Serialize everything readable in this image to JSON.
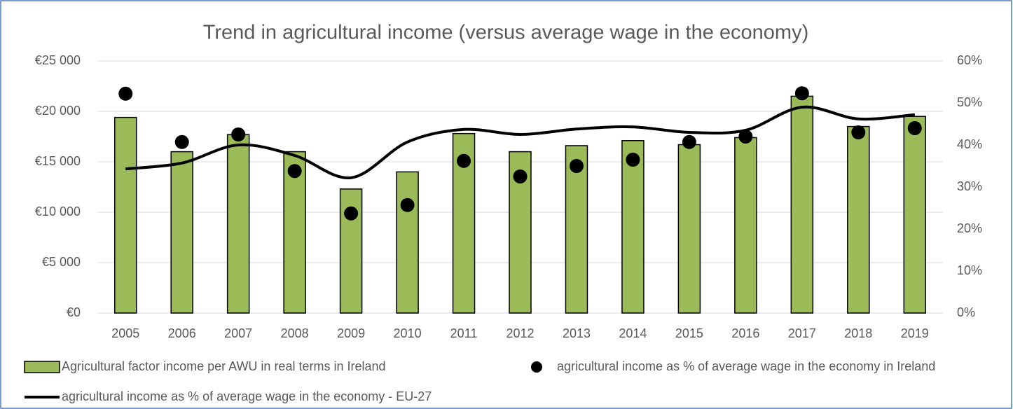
{
  "chart_data": {
    "type": "bar",
    "title": "Trend in agricultural income (versus average wage in the economy)",
    "categories": [
      "2005",
      "2006",
      "2007",
      "2008",
      "2009",
      "2010",
      "2011",
      "2012",
      "2013",
      "2014",
      "2015",
      "2016",
      "2017",
      "2018",
      "2019"
    ],
    "series": [
      {
        "name": "Agricultural factor income per AWU in real terms in Ireland",
        "type": "bar",
        "color": "#9bbb59",
        "values": [
          19400,
          16000,
          17700,
          16000,
          12300,
          14000,
          17800,
          16000,
          16600,
          17100,
          16700,
          17400,
          21500,
          18500,
          19500
        ]
      },
      {
        "name": "agricultural income as % of average wage in the economy in Ireland",
        "type": "scatter",
        "color": "#000000",
        "axis": "y2",
        "values": [
          52.2,
          40.7,
          42.5,
          33.8,
          23.7,
          25.7,
          36.2,
          32.5,
          35,
          36.5,
          40.7,
          42,
          52.3,
          43,
          44
        ]
      },
      {
        "name": "agricultural income as % of average wage in the economy - EU-27",
        "type": "line",
        "color": "#000000",
        "axis": "y2",
        "values": [
          34.3,
          35.7,
          40,
          37.5,
          32.2,
          40.7,
          43.7,
          42.5,
          43.8,
          44.3,
          43,
          43.5,
          49,
          46.2,
          47.2
        ]
      }
    ],
    "ylim": [
      0,
      25000
    ],
    "yticks": [
      {
        "value": 0,
        "label": "€0"
      },
      {
        "value": 5000,
        "label": "€5 000"
      },
      {
        "value": 10000,
        "label": "€10 000"
      },
      {
        "value": 15000,
        "label": "€15 000"
      },
      {
        "value": 20000,
        "label": "€20 000"
      },
      {
        "value": 25000,
        "label": "€25 000"
      }
    ],
    "y2lim": [
      0,
      60
    ],
    "y2ticks": [
      {
        "value": 0,
        "label": "0%"
      },
      {
        "value": 10,
        "label": "10%"
      },
      {
        "value": 20,
        "label": "20%"
      },
      {
        "value": 30,
        "label": "30%"
      },
      {
        "value": 40,
        "label": "40%"
      },
      {
        "value": 50,
        "label": "50%"
      },
      {
        "value": 60,
        "label": "60%"
      }
    ],
    "grid": true,
    "legend": "bottom"
  }
}
